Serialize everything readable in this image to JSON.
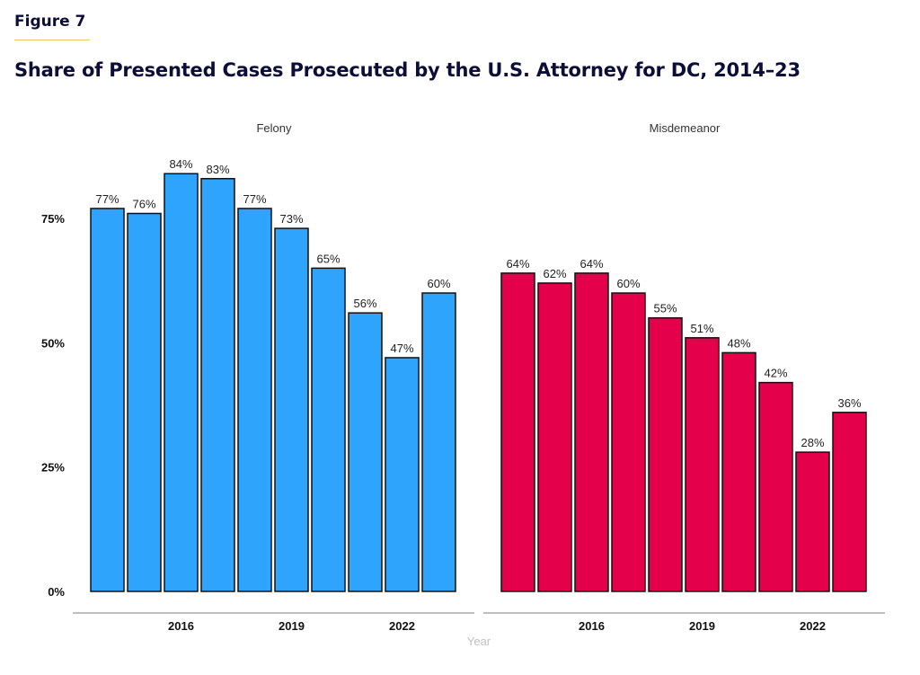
{
  "figure_label": "Figure 7",
  "title": "Share of Presented Cases Prosecuted by the U.S. Attorney for DC, 2014–23",
  "colors": {
    "felony": "#2ea4fd",
    "misdemeanor": "#e4004a",
    "bar_outline": "#111111",
    "axis_line": "#bdbdc2",
    "title_text": "#0d0d3a",
    "accent_rule": "#f0c36d"
  },
  "chart_data": {
    "type": "bar",
    "title": "Share of Presented Cases Prosecuted by the U.S. Attorney for DC, 2014–23",
    "xlabel": "Year",
    "ylabel": "",
    "ylim": [
      0,
      100
    ],
    "yticks": [
      0,
      25,
      50,
      75
    ],
    "ytick_labels": [
      "0%",
      "25%",
      "50%",
      "75%"
    ],
    "categories": [
      2014,
      2015,
      2016,
      2017,
      2018,
      2019,
      2020,
      2021,
      2022,
      2023
    ],
    "xticks": [
      2016,
      2019,
      2022
    ],
    "xtick_labels": [
      "2016",
      "2019",
      "2022"
    ],
    "grid": false,
    "legend": "none (faceted panels)",
    "series": [
      {
        "name": "Felony",
        "values": [
          77,
          76,
          84,
          83,
          77,
          73,
          65,
          56,
          47,
          60
        ],
        "labels": [
          "77%",
          "76%",
          "84%",
          "83%",
          "77%",
          "73%",
          "65%",
          "56%",
          "47%",
          "60%"
        ]
      },
      {
        "name": "Misdemeanor",
        "values": [
          64,
          62,
          64,
          60,
          55,
          51,
          48,
          42,
          28,
          36
        ],
        "labels": [
          "64%",
          "62%",
          "64%",
          "60%",
          "55%",
          "51%",
          "48%",
          "42%",
          "28%",
          "36%"
        ]
      }
    ]
  }
}
